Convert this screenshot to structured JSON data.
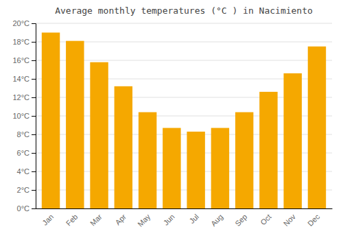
{
  "chart_data": {
    "type": "bar",
    "title": "Average monthly temperatures (°C ) in Nacimiento",
    "categories": [
      "Jan",
      "Feb",
      "Mar",
      "Apr",
      "May",
      "Jun",
      "Jul",
      "Aug",
      "Sep",
      "Oct",
      "Nov",
      "Dec"
    ],
    "values": [
      19.0,
      18.1,
      15.8,
      13.2,
      10.4,
      8.7,
      8.3,
      8.7,
      10.4,
      12.6,
      14.6,
      17.5
    ],
    "color": "#F5A800",
    "ylim": [
      0,
      20
    ],
    "yticks": [
      {
        "value": 0,
        "label": "0°C"
      },
      {
        "value": 2,
        "label": "2°C"
      },
      {
        "value": 4,
        "label": "4°C"
      },
      {
        "value": 6,
        "label": "6°C"
      },
      {
        "value": 8,
        "label": "8°C"
      },
      {
        "value": 10,
        "label": "10°C"
      },
      {
        "value": 12,
        "label": "12°C"
      },
      {
        "value": 14,
        "label": "14°C"
      },
      {
        "value": 16,
        "label": "16°C"
      },
      {
        "value": 18,
        "label": "18°C"
      },
      {
        "value": 20,
        "label": "20°C"
      }
    ],
    "grid": true
  }
}
